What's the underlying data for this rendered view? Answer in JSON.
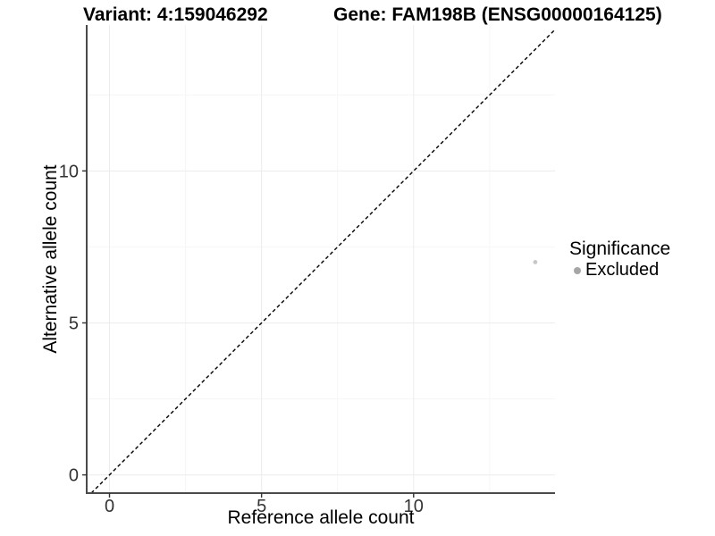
{
  "header": {
    "variant_title": "Variant: 4:159046292",
    "gene_title": "Gene: FAM198B (ENSG00000164125)"
  },
  "legend": {
    "title": "Significance",
    "items": [
      {
        "label": "Excluded",
        "color": "#a6a6a6",
        "shape": "circle"
      }
    ]
  },
  "chart_data": {
    "type": "scatter",
    "title": "Variant: 4:159046292   Gene: FAM198B (ENSG00000164125)",
    "xlabel": "Reference allele count",
    "ylabel": "Alternative allele count",
    "xlim": [
      -0.75,
      14.65
    ],
    "ylim": [
      -0.6,
      14.8
    ],
    "x_ticks": [
      0,
      5,
      10
    ],
    "y_ticks": [
      0,
      5,
      10
    ],
    "x_minor_ticks": [
      2.5,
      7.5,
      12.5
    ],
    "y_minor_ticks": [
      2.5,
      7.5,
      12.5
    ],
    "grid": "major and minor gridlines, very light gray, white panel background",
    "legend_position": "right",
    "legend_title": "Significance",
    "legend_entries": [
      "Excluded"
    ],
    "series": [
      {
        "name": "Excluded",
        "points": [
          [
            14,
            7
          ]
        ],
        "color": "#c8c8c8",
        "marker_radius": 2.4
      }
    ],
    "reference_line": {
      "kind": "identity y=x",
      "style": "dashed",
      "color": "#000000",
      "x1": -0.6,
      "y1": -0.6,
      "x2": 14.65,
      "y2": 14.65
    },
    "colors": {
      "axis_line": "#4a4a4a",
      "tick_label": "#333333",
      "grid_major": "#ececec",
      "grid_minor": "#f6f6f6"
    }
  }
}
